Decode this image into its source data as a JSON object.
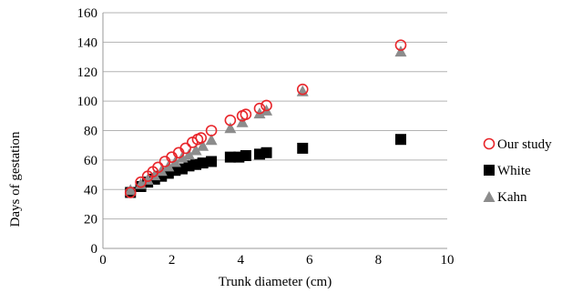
{
  "chart_data": {
    "type": "scatter",
    "xlabel": "Trunk diameter (cm)",
    "ylabel": "Days of gestation",
    "xlim": [
      0,
      10
    ],
    "ylim": [
      0,
      160
    ],
    "x_ticks": [
      0,
      2,
      4,
      6,
      8,
      10
    ],
    "y_ticks": [
      0,
      20,
      40,
      60,
      80,
      100,
      120,
      140,
      160
    ],
    "grid": "horizontal",
    "legend_position": "right",
    "series": [
      {
        "name": "Our study",
        "marker": "open-circle",
        "color": "#e8262b",
        "points": [
          [
            0.8,
            38
          ],
          [
            1.1,
            45
          ],
          [
            1.3,
            49
          ],
          [
            1.45,
            52
          ],
          [
            1.6,
            55
          ],
          [
            1.8,
            59
          ],
          [
            2.0,
            62
          ],
          [
            2.2,
            65
          ],
          [
            2.4,
            68
          ],
          [
            2.6,
            72
          ],
          [
            2.75,
            74
          ],
          [
            2.85,
            75
          ],
          [
            3.15,
            80
          ],
          [
            3.7,
            87
          ],
          [
            4.05,
            90
          ],
          [
            4.15,
            91
          ],
          [
            4.55,
            95
          ],
          [
            4.75,
            97
          ],
          [
            5.8,
            108
          ],
          [
            8.65,
            138
          ]
        ]
      },
      {
        "name": "White",
        "marker": "filled-square",
        "color": "#000000",
        "points": [
          [
            0.8,
            38
          ],
          [
            1.1,
            42
          ],
          [
            1.3,
            45
          ],
          [
            1.5,
            47
          ],
          [
            1.7,
            49
          ],
          [
            1.9,
            51
          ],
          [
            2.1,
            53
          ],
          [
            2.3,
            54
          ],
          [
            2.5,
            56
          ],
          [
            2.7,
            57
          ],
          [
            2.9,
            58
          ],
          [
            3.15,
            59
          ],
          [
            3.7,
            62
          ],
          [
            3.95,
            62
          ],
          [
            4.15,
            63
          ],
          [
            4.55,
            64
          ],
          [
            4.75,
            65
          ],
          [
            5.8,
            68
          ],
          [
            8.65,
            74
          ]
        ]
      },
      {
        "name": "Kahn",
        "marker": "filled-triangle",
        "color": "#8c8c8c",
        "points": [
          [
            0.8,
            40
          ],
          [
            1.1,
            44
          ],
          [
            1.3,
            47
          ],
          [
            1.5,
            50
          ],
          [
            1.7,
            53
          ],
          [
            1.9,
            56
          ],
          [
            2.1,
            59
          ],
          [
            2.3,
            62
          ],
          [
            2.5,
            64
          ],
          [
            2.7,
            67
          ],
          [
            2.9,
            70
          ],
          [
            3.15,
            74
          ],
          [
            3.7,
            82
          ],
          [
            4.05,
            86
          ],
          [
            4.55,
            92
          ],
          [
            4.75,
            94
          ],
          [
            5.8,
            107
          ],
          [
            8.65,
            134
          ]
        ]
      }
    ]
  }
}
